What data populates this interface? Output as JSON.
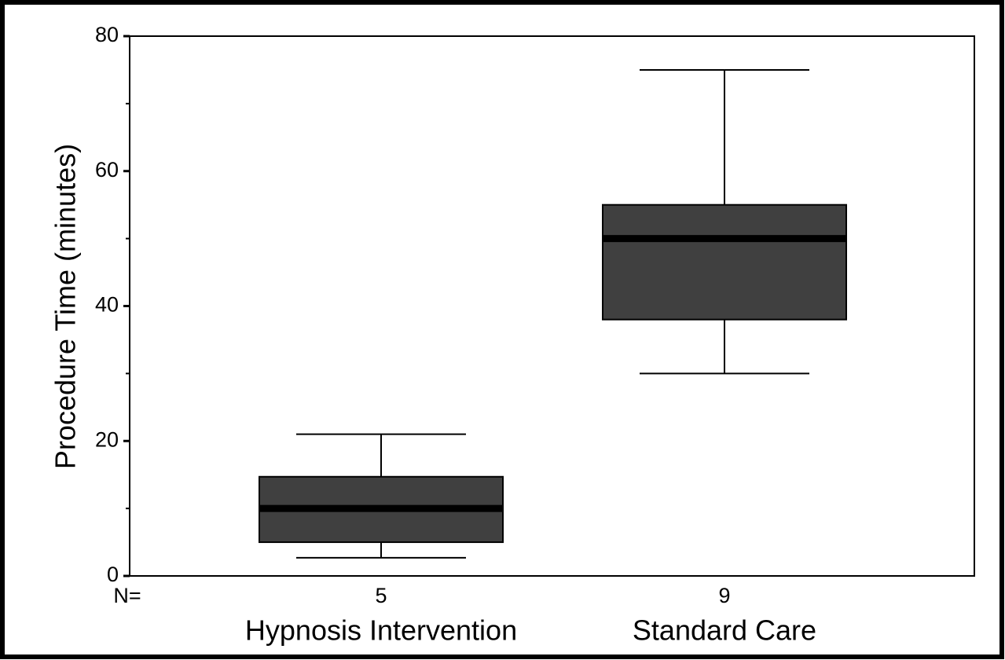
{
  "chart_data": {
    "type": "box",
    "y_label": "Procedure Time (minutes)",
    "n_label": "N=",
    "categories": [
      "Hypnosis Intervention",
      "Standard Care"
    ],
    "counts": [
      5,
      9
    ],
    "boxes": [
      {
        "min": 2.7,
        "q1": 5,
        "median": 10,
        "q3": 14.7,
        "max": 21
      },
      {
        "min": 30,
        "q1": 38,
        "median": 50,
        "q3": 55,
        "max": 75
      }
    ],
    "color": "#404040",
    "ylim": [
      0,
      80
    ],
    "yticks": [
      0,
      20,
      40,
      60,
      80
    ],
    "yminor_ticks": [
      10,
      30,
      50,
      70
    ]
  }
}
